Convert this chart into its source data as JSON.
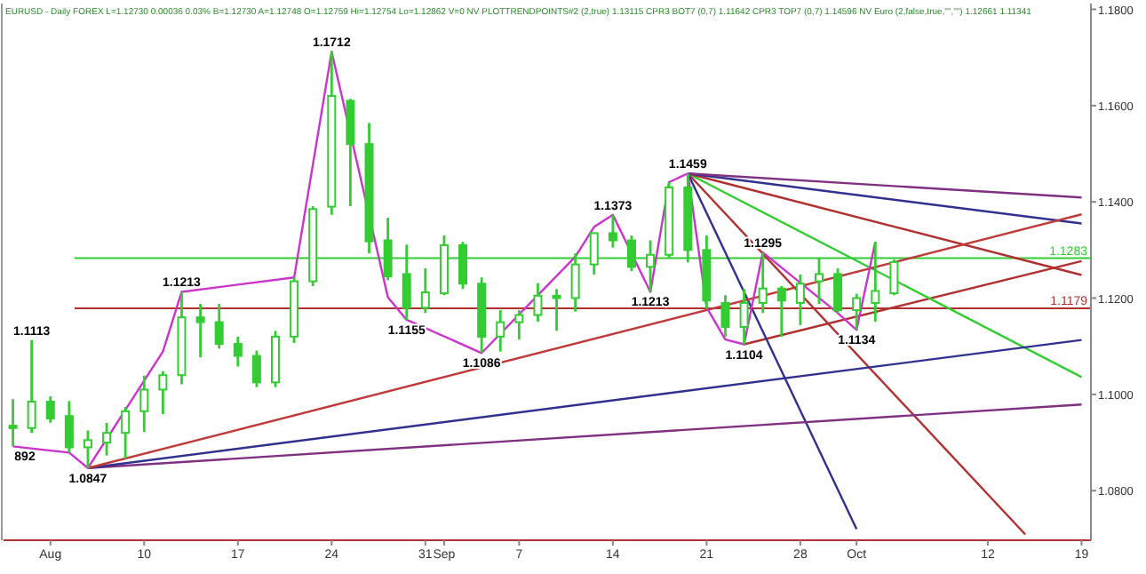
{
  "chart_data": {
    "type": "candlestick",
    "title": "EURUSD - Daily FOREX L=1.12730 0.00036 0.03% B=1.12730 A=1.12748 O=1.12759 Hi=1.12754 Lo=1.12862 V=0 NV PLOTTRENDPOINTS#2 (2,true) 1.13115 CPR3 BOT7 (0,7) 1.11642 CPR3 TOP7 (0,7) 1.14596 NV Euro (2,false,true,\"\",\"\") 1.12661 1.11341",
    "categories": [
      null,
      null,
      "Aug",
      null,
      null,
      null,
      null,
      "10",
      null,
      null,
      null,
      null,
      "17",
      null,
      null,
      null,
      null,
      "24",
      null,
      null,
      null,
      null,
      "31",
      "Sep",
      null,
      null,
      null,
      "7",
      null,
      null,
      null,
      null,
      "14",
      null,
      null,
      null,
      null,
      "21",
      null,
      null,
      null,
      null,
      "28",
      null,
      null,
      "Oct",
      null,
      null,
      null,
      null,
      null,
      null,
      "12",
      null,
      null,
      null,
      null,
      "19"
    ],
    "color": "#33cc33",
    "ohlc": [
      [
        1.0935,
        1.099,
        1.0892,
        1.093
      ],
      [
        1.093,
        1.1113,
        1.092,
        1.0985
      ],
      [
        1.0985,
        1.0996,
        1.0941,
        1.095
      ],
      [
        1.0955,
        1.0986,
        1.0879,
        1.089
      ],
      [
        1.089,
        1.0925,
        1.0847,
        1.0905
      ],
      [
        1.09,
        1.0941,
        1.0873,
        1.092
      ],
      [
        1.092,
        1.0974,
        1.0867,
        1.0965
      ],
      [
        1.0965,
        1.1039,
        1.0922,
        1.101
      ],
      [
        1.101,
        1.1048,
        1.0959,
        1.104
      ],
      [
        1.104,
        1.1213,
        1.1021,
        1.116
      ],
      [
        1.116,
        1.1188,
        1.1077,
        1.115
      ],
      [
        1.115,
        1.1188,
        1.1095,
        1.1105
      ],
      [
        1.1105,
        1.112,
        1.1058,
        1.108
      ],
      [
        1.108,
        1.1091,
        1.1015,
        1.1025
      ],
      [
        1.1025,
        1.1132,
        1.1015,
        1.112
      ],
      [
        1.112,
        1.1243,
        1.1107,
        1.1235
      ],
      [
        1.1235,
        1.1391,
        1.1225,
        1.1385
      ],
      [
        1.139,
        1.1712,
        1.1373,
        1.162
      ],
      [
        1.161,
        1.1614,
        1.1391,
        1.152
      ],
      [
        1.152,
        1.1564,
        1.1293,
        1.1318
      ],
      [
        1.132,
        1.1367,
        1.1237,
        1.1245
      ],
      [
        1.125,
        1.1311,
        1.1155,
        1.118
      ],
      [
        1.118,
        1.1262,
        1.1169,
        1.1212
      ],
      [
        1.121,
        1.133,
        1.1206,
        1.131
      ],
      [
        1.131,
        1.1317,
        1.1219,
        1.123
      ],
      [
        1.123,
        1.1243,
        1.1086,
        1.112
      ],
      [
        1.112,
        1.1175,
        1.1089,
        1.115
      ],
      [
        1.115,
        1.1175,
        1.1114,
        1.1165
      ],
      [
        1.1165,
        1.1231,
        1.1151,
        1.1205
      ],
      [
        1.1205,
        1.1219,
        1.1132,
        1.12
      ],
      [
        1.12,
        1.1293,
        1.1172,
        1.127
      ],
      [
        1.127,
        1.1336,
        1.1249,
        1.1335
      ],
      [
        1.1335,
        1.1373,
        1.1305,
        1.132
      ],
      [
        1.132,
        1.133,
        1.1256,
        1.1265
      ],
      [
        1.1265,
        1.132,
        1.1213,
        1.129
      ],
      [
        1.129,
        1.1441,
        1.1283,
        1.143
      ],
      [
        1.143,
        1.1459,
        1.1274,
        1.13
      ],
      [
        1.13,
        1.133,
        1.1178,
        1.1195
      ],
      [
        1.119,
        1.1206,
        1.112,
        1.114
      ],
      [
        1.114,
        1.1219,
        1.1104,
        1.119
      ],
      [
        1.119,
        1.1295,
        1.1169,
        1.122
      ],
      [
        1.122,
        1.1225,
        1.112,
        1.1195
      ],
      [
        1.119,
        1.1249,
        1.1144,
        1.123
      ],
      [
        1.1235,
        1.1283,
        1.1188,
        1.125
      ],
      [
        1.125,
        1.1262,
        1.1169,
        1.1175
      ],
      [
        1.1175,
        1.1209,
        1.1134,
        1.12
      ],
      [
        1.119,
        1.1317,
        1.1151,
        1.1215
      ],
      [
        1.121,
        1.128,
        1.1206,
        1.1275
      ],
      null,
      null,
      null,
      null,
      null,
      null,
      null,
      null,
      null,
      null
    ],
    "series": [
      {
        "type": "line",
        "color": "#cc33cc",
        "values": [
          1.0892,
          null,
          null,
          1.0879,
          1.0847,
          null,
          null,
          null,
          1.1089,
          1.1213,
          null,
          null,
          null,
          null,
          null,
          1.1243,
          null,
          1.1712,
          null,
          null,
          1.1202,
          1.1155,
          null,
          null,
          null,
          1.1086,
          null,
          null,
          null,
          null,
          1.1286,
          1.1348,
          1.1373,
          null,
          1.1213,
          1.1441,
          1.1459,
          1.1181,
          1.1114,
          1.1104,
          1.1295,
          null,
          null,
          null,
          1.1169,
          1.1134,
          1.1317,
          null,
          null,
          null,
          null,
          null,
          null,
          null,
          null,
          null,
          null,
          null
        ]
      },
      {
        "type": "line",
        "color": "#c03838",
        "values": [
          null,
          null,
          null,
          null,
          1.0847,
          null,
          null,
          null,
          null,
          null,
          null,
          null,
          null,
          null,
          null,
          null,
          null,
          null,
          null,
          null,
          null,
          null,
          null,
          null,
          null,
          null,
          null,
          null,
          null,
          null,
          null,
          null,
          null,
          null,
          null,
          null,
          null,
          null,
          null,
          null,
          null,
          null,
          null,
          null,
          null,
          null,
          null,
          null,
          null,
          null,
          null,
          null,
          null,
          null,
          null,
          null,
          null,
          1.1374
        ]
      },
      {
        "type": "line",
        "color": "#303090",
        "values": [
          null,
          null,
          null,
          null,
          1.0847,
          null,
          null,
          null,
          null,
          null,
          null,
          null,
          null,
          null,
          null,
          null,
          null,
          null,
          null,
          null,
          null,
          null,
          null,
          null,
          null,
          null,
          null,
          null,
          null,
          null,
          null,
          null,
          null,
          null,
          null,
          null,
          null,
          null,
          null,
          null,
          null,
          null,
          null,
          null,
          null,
          null,
          null,
          null,
          null,
          null,
          null,
          null,
          null,
          null,
          null,
          null,
          null,
          1.1113
        ]
      },
      {
        "type": "line",
        "color": "#803080",
        "values": [
          null,
          null,
          null,
          null,
          1.0847,
          null,
          null,
          null,
          null,
          null,
          null,
          null,
          null,
          null,
          null,
          null,
          null,
          null,
          null,
          null,
          null,
          null,
          null,
          null,
          null,
          null,
          null,
          null,
          null,
          null,
          null,
          null,
          null,
          null,
          null,
          null,
          null,
          null,
          null,
          null,
          null,
          null,
          null,
          null,
          null,
          null,
          null,
          null,
          null,
          null,
          null,
          null,
          null,
          null,
          null,
          null,
          null,
          1.0979
        ]
      },
      {
        "type": "line",
        "color": "#803080",
        "values": [
          null,
          null,
          null,
          null,
          null,
          null,
          null,
          null,
          null,
          null,
          null,
          null,
          null,
          null,
          null,
          null,
          null,
          null,
          null,
          null,
          null,
          null,
          null,
          null,
          null,
          null,
          null,
          null,
          null,
          null,
          null,
          null,
          null,
          null,
          null,
          null,
          1.1459,
          null,
          null,
          null,
          null,
          null,
          null,
          null,
          null,
          null,
          null,
          null,
          null,
          null,
          null,
          null,
          null,
          null,
          null,
          null,
          null,
          1.1409
        ]
      },
      {
        "type": "line",
        "color": "#303090",
        "values": [
          null,
          null,
          null,
          null,
          null,
          null,
          null,
          null,
          null,
          null,
          null,
          null,
          null,
          null,
          null,
          null,
          null,
          null,
          null,
          null,
          null,
          null,
          null,
          null,
          null,
          null,
          null,
          null,
          null,
          null,
          null,
          null,
          null,
          null,
          null,
          null,
          1.1459,
          null,
          null,
          null,
          null,
          null,
          null,
          null,
          null,
          null,
          null,
          null,
          null,
          null,
          null,
          null,
          null,
          null,
          null,
          null,
          null,
          1.1355
        ]
      },
      {
        "type": "line",
        "color": "#b03030",
        "values": [
          null,
          null,
          null,
          null,
          null,
          null,
          null,
          null,
          null,
          null,
          null,
          null,
          null,
          null,
          null,
          null,
          null,
          null,
          null,
          null,
          null,
          null,
          null,
          null,
          null,
          null,
          null,
          null,
          null,
          null,
          null,
          null,
          null,
          null,
          null,
          null,
          1.1459,
          null,
          null,
          null,
          null,
          null,
          null,
          null,
          null,
          null,
          null,
          null,
          null,
          null,
          null,
          null,
          null,
          null,
          null,
          null,
          null,
          1.1248
        ]
      },
      {
        "type": "line",
        "color": "#33cc33",
        "values": [
          null,
          null,
          null,
          null,
          null,
          null,
          null,
          null,
          null,
          null,
          null,
          null,
          null,
          null,
          null,
          null,
          null,
          null,
          null,
          null,
          null,
          null,
          null,
          null,
          null,
          null,
          null,
          null,
          null,
          null,
          null,
          null,
          null,
          null,
          null,
          null,
          1.1459,
          null,
          null,
          null,
          null,
          null,
          null,
          null,
          null,
          null,
          null,
          null,
          null,
          null,
          null,
          null,
          null,
          null,
          null,
          null,
          null,
          1.1036
        ]
      },
      {
        "type": "line",
        "color": "#303090",
        "values": [
          null,
          null,
          null,
          null,
          null,
          null,
          null,
          null,
          null,
          null,
          null,
          null,
          null,
          null,
          null,
          null,
          null,
          null,
          null,
          null,
          null,
          null,
          null,
          null,
          null,
          null,
          null,
          null,
          null,
          null,
          null,
          null,
          null,
          null,
          null,
          null,
          1.1459,
          null,
          null,
          null,
          null,
          null,
          null,
          null,
          null,
          1.072,
          null,
          null,
          null,
          null,
          null,
          null,
          null,
          null,
          null,
          null,
          null,
          null
        ]
      },
      {
        "type": "line",
        "color": "#b03030",
        "values": [
          null,
          null,
          null,
          null,
          null,
          null,
          null,
          null,
          null,
          null,
          null,
          null,
          null,
          null,
          null,
          null,
          null,
          null,
          null,
          null,
          null,
          null,
          null,
          null,
          null,
          null,
          null,
          null,
          null,
          null,
          null,
          null,
          null,
          null,
          null,
          null,
          1.1459,
          null,
          null,
          null,
          null,
          null,
          null,
          null,
          null,
          null,
          null,
          null,
          null,
          null,
          null,
          null,
          null,
          null,
          1.0709,
          null,
          null,
          null
        ]
      },
      {
        "type": "line",
        "color": "#b03030",
        "values": [
          null,
          null,
          null,
          null,
          null,
          null,
          null,
          null,
          null,
          null,
          null,
          null,
          null,
          null,
          null,
          null,
          null,
          null,
          null,
          null,
          null,
          null,
          null,
          null,
          null,
          null,
          null,
          null,
          null,
          null,
          null,
          null,
          null,
          null,
          null,
          null,
          null,
          null,
          null,
          1.1104,
          null,
          null,
          null,
          null,
          null,
          null,
          null,
          null,
          null,
          null,
          null,
          null,
          null,
          null,
          null,
          null,
          null,
          1.1277
        ]
      }
    ],
    "ref_lines": [
      {
        "axis": "y",
        "value": 1.1283,
        "label": "1.1283",
        "color": "#33cc33"
      },
      {
        "axis": "y",
        "value": 1.1179,
        "label": "1.1179",
        "color": "#b03030"
      }
    ],
    "annotations": [
      {
        "text": "892",
        "y": 1.0892
      },
      {
        "text": "1.1113",
        "y": 1.1113
      },
      {
        "text": "1.0847",
        "y": 1.0847
      },
      {
        "text": "1.1213",
        "y": 1.1213
      },
      {
        "text": "1.1712",
        "y": 1.1712
      },
      {
        "text": "1.1155",
        "y": 1.1155
      },
      {
        "text": "1.1086",
        "y": 1.1086
      },
      {
        "text": "1.1373",
        "y": 1.1373
      },
      {
        "text": "1.1213",
        "y": 1.1213
      },
      {
        "text": "1.1459",
        "y": 1.1459
      },
      {
        "text": "1.1104",
        "y": 1.1104
      },
      {
        "text": "1.1295",
        "y": 1.1295
      },
      {
        "text": "1.1134",
        "y": 1.1134
      }
    ],
    "ylim": [
      1.0697,
      1.1812
    ],
    "yticks": [
      {
        "value": 1.08,
        "label": "1.0800"
      },
      {
        "value": 1.1,
        "label": "1.1000"
      },
      {
        "value": 1.12,
        "label": "1.1200"
      },
      {
        "value": 1.14,
        "label": "1.1400"
      },
      {
        "value": 1.16,
        "label": "1.1600"
      },
      {
        "value": 1.18,
        "label": "1.1800"
      }
    ],
    "grid": false
  }
}
